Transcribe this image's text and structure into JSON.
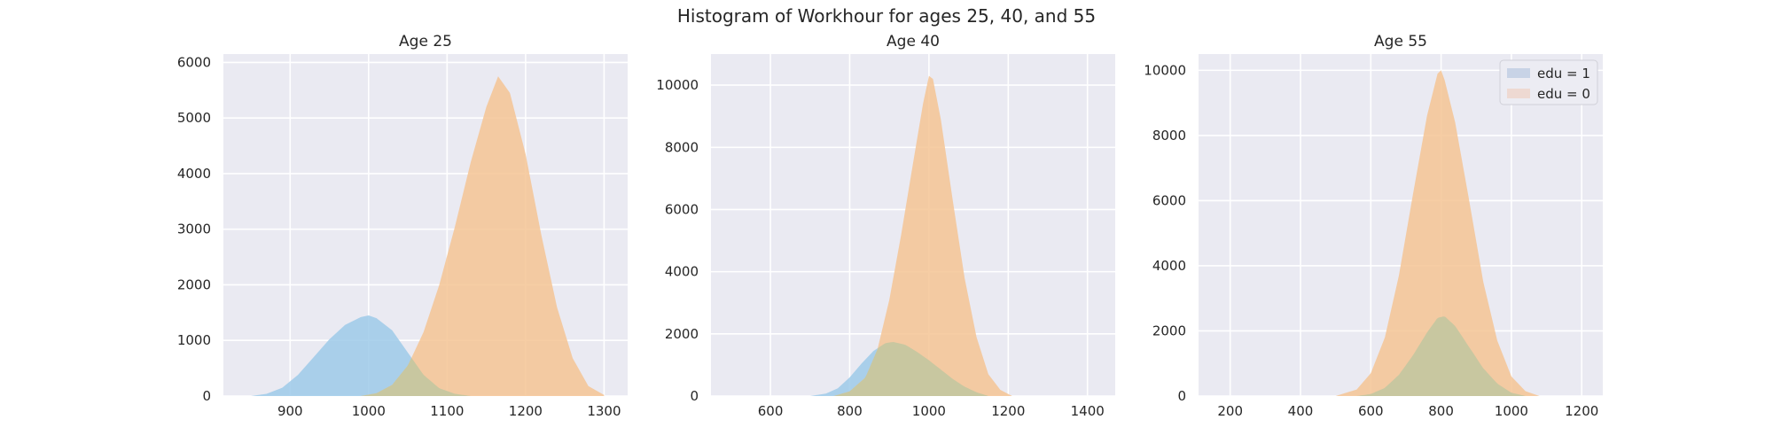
{
  "suptitle": "Histogram of Workhour for ages 25, 40, and 55",
  "colors": {
    "edu1_fill": "#9ecae9",
    "edu0_fill": "#f4c494",
    "overlap_fill": "#c4c6a0",
    "axes_bg": "#eaeaf2",
    "grid": "#ffffff"
  },
  "legend": {
    "placement": "top-right",
    "panel": 2,
    "entries": [
      {
        "label": "edu = 1",
        "swatch": "#c8d3e6"
      },
      {
        "label": "edu = 0",
        "swatch": "#eed9d2"
      }
    ]
  },
  "chart_data": [
    {
      "type": "histogram",
      "title": "Age 25",
      "xlabel": "",
      "ylabel": "",
      "xlim": [
        815,
        1330
      ],
      "ylim": [
        0,
        6150
      ],
      "xticks": [
        900,
        1000,
        1100,
        1200,
        1300
      ],
      "yticks": [
        0,
        1000,
        2000,
        3000,
        4000,
        5000,
        6000
      ],
      "grid": true,
      "series": [
        {
          "name": "edu = 1",
          "color_key": "edu1_fill",
          "x": [
            850,
            870,
            890,
            910,
            930,
            950,
            970,
            990,
            1000,
            1010,
            1030,
            1050,
            1070,
            1090,
            1110,
            1130
          ],
          "y": [
            0,
            40,
            150,
            380,
            700,
            1020,
            1280,
            1420,
            1450,
            1400,
            1180,
            780,
            380,
            140,
            40,
            0
          ]
        },
        {
          "name": "edu = 0",
          "color_key": "edu0_fill",
          "x": [
            990,
            1010,
            1030,
            1050,
            1070,
            1090,
            1110,
            1130,
            1150,
            1165,
            1180,
            1200,
            1220,
            1240,
            1260,
            1280,
            1300
          ],
          "y": [
            0,
            50,
            200,
            550,
            1150,
            2000,
            3050,
            4200,
            5200,
            5750,
            5450,
            4350,
            2900,
            1600,
            680,
            180,
            20
          ]
        }
      ]
    },
    {
      "type": "histogram",
      "title": "Age 40",
      "xlabel": "",
      "ylabel": "",
      "xlim": [
        450,
        1470
      ],
      "ylim": [
        0,
        11000
      ],
      "xticks": [
        600,
        800,
        1000,
        1200,
        1400
      ],
      "yticks": [
        0,
        2000,
        4000,
        6000,
        8000,
        10000
      ],
      "grid": true,
      "series": [
        {
          "name": "edu = 1",
          "color_key": "edu1_fill",
          "x": [
            700,
            740,
            770,
            800,
            830,
            860,
            890,
            910,
            940,
            970,
            1000,
            1030,
            1060,
            1090,
            1120,
            1150
          ],
          "y": [
            0,
            80,
            250,
            600,
            1050,
            1450,
            1700,
            1740,
            1650,
            1420,
            1150,
            850,
            550,
            300,
            120,
            0
          ]
        },
        {
          "name": "edu = 0",
          "color_key": "edu0_fill",
          "x": [
            760,
            800,
            840,
            870,
            900,
            930,
            960,
            985,
            1000,
            1010,
            1030,
            1060,
            1090,
            1120,
            1150,
            1180,
            1210
          ],
          "y": [
            0,
            150,
            600,
            1500,
            3100,
            5200,
            7500,
            9400,
            10300,
            10200,
            8900,
            6300,
            3800,
            1900,
            700,
            200,
            0
          ]
        }
      ]
    },
    {
      "type": "histogram",
      "title": "Age 55",
      "xlabel": "",
      "ylabel": "",
      "xlim": [
        110,
        1260
      ],
      "ylim": [
        0,
        10500
      ],
      "xticks": [
        200,
        400,
        600,
        800,
        1000,
        1200
      ],
      "yticks": [
        0,
        2000,
        4000,
        6000,
        8000,
        10000
      ],
      "grid": true,
      "series": [
        {
          "name": "edu = 1",
          "color_key": "edu1_fill",
          "x": [
            560,
            600,
            640,
            680,
            720,
            760,
            790,
            810,
            840,
            880,
            920,
            960,
            1000,
            1040
          ],
          "y": [
            0,
            60,
            250,
            650,
            1250,
            1950,
            2400,
            2450,
            2150,
            1500,
            850,
            380,
            100,
            0
          ]
        },
        {
          "name": "edu = 0",
          "color_key": "edu0_fill",
          "x": [
            500,
            560,
            600,
            640,
            680,
            720,
            760,
            790,
            800,
            810,
            840,
            880,
            920,
            960,
            1000,
            1040,
            1080
          ],
          "y": [
            0,
            200,
            700,
            1800,
            3700,
            6200,
            8600,
            9900,
            10000,
            9700,
            8400,
            6000,
            3500,
            1700,
            600,
            150,
            0
          ]
        }
      ]
    }
  ]
}
